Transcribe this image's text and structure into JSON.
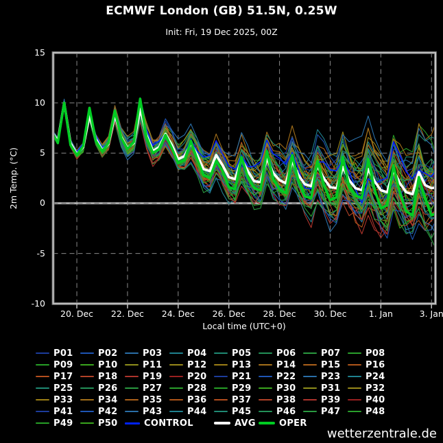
{
  "header": {
    "title": "ECMWF London (GB) 51.5N, 0.25W",
    "subtitle": "Init: Fri, 19 Dec 2025, 00Z"
  },
  "watermark": "wetterzentrale.de",
  "colors": {
    "background": "#000000",
    "frame": "#c4c4c4",
    "grid": "#8a8a8a",
    "zero_line": "#b0b0b0",
    "text": "#ffffff",
    "control": "#0022ff",
    "avg": "#ffffff",
    "oper": "#00cc22"
  },
  "chart_data": {
    "type": "line",
    "title": "ECMWF London (GB) 51.5N, 0.25W",
    "subtitle": "Init: Fri, 19 Dec 2025, 00Z",
    "xlabel": "Local time (UTC+0)",
    "ylabel": "2m Temp. (°C)",
    "ylim": [
      -10,
      15
    ],
    "y_ticks": [
      15,
      10,
      5,
      0,
      -5,
      -10
    ],
    "x_ticks": [
      {
        "label": "20. Dec",
        "hour": 24
      },
      {
        "label": "22. Dec",
        "hour": 72
      },
      {
        "label": "24. Dec",
        "hour": 120
      },
      {
        "label": "26. Dec",
        "hour": 168
      },
      {
        "label": "28. Dec",
        "hour": 216
      },
      {
        "label": "30. Dec",
        "hour": 264
      },
      {
        "label": "1. Jan",
        "hour": 312
      },
      {
        "label": "3. Jan",
        "hour": 360
      }
    ],
    "x_hours": {
      "start": 0,
      "step": 6,
      "count": 62
    },
    "grid": {
      "h_dashed_at": [
        10,
        5,
        -5
      ],
      "v_dashed_at_ticks": true,
      "zero_line": true
    },
    "legend_position": "below",
    "series": [
      {
        "name": "AVG",
        "color": "#ffffff",
        "width": 3.6,
        "values": [
          7.2,
          6.2,
          10.0,
          6.0,
          4.9,
          5.6,
          8.8,
          6.4,
          5.3,
          5.9,
          8.8,
          6.6,
          5.5,
          6.0,
          9.4,
          6.8,
          5.2,
          5.6,
          6.9,
          5.8,
          4.4,
          4.7,
          6.0,
          4.8,
          3.4,
          3.2,
          4.8,
          3.8,
          2.6,
          2.4,
          4.4,
          3.2,
          2.2,
          2.1,
          4.5,
          3.0,
          2.3,
          2.0,
          4.2,
          2.8,
          1.9,
          1.7,
          3.7,
          2.5,
          1.6,
          1.5,
          3.6,
          2.3,
          1.5,
          1.3,
          3.4,
          2.2,
          1.3,
          1.1,
          3.3,
          2.0,
          1.1,
          0.9,
          3.1,
          1.8,
          1.5,
          1.6
        ]
      },
      {
        "name": "OPER",
        "color": "#00cc22",
        "width": 3.6,
        "values": [
          7.2,
          6.0,
          10.0,
          5.8,
          4.8,
          5.7,
          9.5,
          6.2,
          5.2,
          6.0,
          9.2,
          6.5,
          5.4,
          6.1,
          10.4,
          6.6,
          5.0,
          5.4,
          6.8,
          5.5,
          4.0,
          4.3,
          6.2,
          4.4,
          2.8,
          2.5,
          4.2,
          3.2,
          1.6,
          1.4,
          4.6,
          2.6,
          1.5,
          1.3,
          5.2,
          2.4,
          1.4,
          1.0,
          4.8,
          2.2,
          0.7,
          0.5,
          4.2,
          1.8,
          0.3,
          0.6,
          4.6,
          1.6,
          0.8,
          0.5,
          4.4,
          1.4,
          -0.5,
          -0.2,
          3.8,
          1.0,
          -0.8,
          -1.2,
          2.6,
          0.4,
          -1.2,
          -0.9
        ]
      }
    ],
    "ensemble": {
      "control": {
        "label": "CONTROL",
        "color": "#0022ff",
        "width": 1.5
      },
      "seed": 20251219,
      "spread": {
        "base": 0.15,
        "growth": 3.35,
        "exponent": 1.15
      },
      "members": [
        {
          "label": "P01",
          "color": "#1c3c9c"
        },
        {
          "label": "P02",
          "color": "#1e55b4"
        },
        {
          "label": "P03",
          "color": "#2a6fa8"
        },
        {
          "label": "P04",
          "color": "#1f8290"
        },
        {
          "label": "P05",
          "color": "#1f8a74"
        },
        {
          "label": "P06",
          "color": "#239158"
        },
        {
          "label": "P07",
          "color": "#2a9a40"
        },
        {
          "label": "P08",
          "color": "#2aa02c"
        },
        {
          "label": "P09",
          "color": "#27a027"
        },
        {
          "label": "P10",
          "color": "#3aa61e"
        },
        {
          "label": "P11",
          "color": "#8f8f1c"
        },
        {
          "label": "P12",
          "color": "#98891a"
        },
        {
          "label": "P13",
          "color": "#9c7f16"
        },
        {
          "label": "P14",
          "color": "#a4701a"
        },
        {
          "label": "P15",
          "color": "#ac611a"
        },
        {
          "label": "P16",
          "color": "#b0561a"
        },
        {
          "label": "P17",
          "color": "#b44e1e"
        },
        {
          "label": "P18",
          "color": "#b24228"
        },
        {
          "label": "P19",
          "color": "#ae342c"
        },
        {
          "label": "P20",
          "color": "#992020"
        },
        {
          "label": "P21",
          "color": "#1c3c9c"
        },
        {
          "label": "P22",
          "color": "#1e55b4"
        },
        {
          "label": "P23",
          "color": "#2a6fa8"
        },
        {
          "label": "P24",
          "color": "#1f8290"
        },
        {
          "label": "P25",
          "color": "#1f8a74"
        },
        {
          "label": "P26",
          "color": "#239158"
        },
        {
          "label": "P27",
          "color": "#2a9a40"
        },
        {
          "label": "P28",
          "color": "#2aa02c"
        },
        {
          "label": "P29",
          "color": "#27a027"
        },
        {
          "label": "P30",
          "color": "#3aa61e"
        },
        {
          "label": "P31",
          "color": "#8f8f1c"
        },
        {
          "label": "P32",
          "color": "#98891a"
        },
        {
          "label": "P33",
          "color": "#9c7f16"
        },
        {
          "label": "P34",
          "color": "#a4701a"
        },
        {
          "label": "P35",
          "color": "#ac611a"
        },
        {
          "label": "P36",
          "color": "#b0561a"
        },
        {
          "label": "P37",
          "color": "#b44e1e"
        },
        {
          "label": "P38",
          "color": "#b24228"
        },
        {
          "label": "P39",
          "color": "#ae342c"
        },
        {
          "label": "P40",
          "color": "#992020"
        },
        {
          "label": "P41",
          "color": "#1c3c9c"
        },
        {
          "label": "P42",
          "color": "#1e55b4"
        },
        {
          "label": "P43",
          "color": "#2a6fa8"
        },
        {
          "label": "P44",
          "color": "#1f8290"
        },
        {
          "label": "P45",
          "color": "#1f8a74"
        },
        {
          "label": "P46",
          "color": "#239158"
        },
        {
          "label": "P47",
          "color": "#2a9a40"
        },
        {
          "label": "P48",
          "color": "#2aa02c"
        },
        {
          "label": "P49",
          "color": "#27a027"
        },
        {
          "label": "P50",
          "color": "#3aa61e"
        }
      ]
    }
  }
}
